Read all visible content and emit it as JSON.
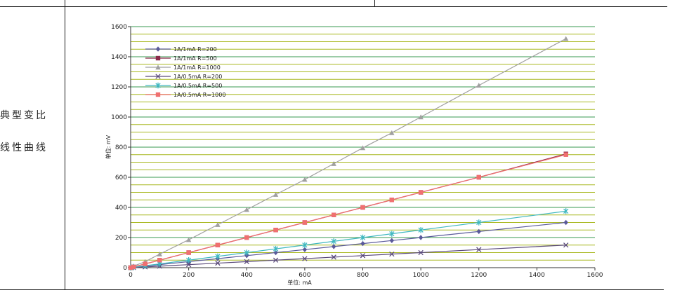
{
  "side": {
    "line1": "典型变比",
    "line2": "线性曲线"
  },
  "chart_data": {
    "type": "line",
    "xlabel": "单位:  mA",
    "ylabel": "单位:  mV",
    "xlim": [
      0,
      1600
    ],
    "ylim": [
      0,
      1600
    ],
    "xticks": [
      0,
      200,
      400,
      600,
      800,
      1000,
      1200,
      1400,
      1600
    ],
    "yticks": [
      0,
      200,
      400,
      600,
      800,
      1000,
      1200,
      1400,
      1600
    ],
    "grid": true,
    "legend_position": "top-left",
    "x": [
      0,
      10,
      50,
      100,
      200,
      300,
      400,
      500,
      600,
      700,
      800,
      900,
      1000,
      1200,
      1500
    ],
    "series": [
      {
        "name": "1A/1mA  R=200",
        "color": "#5a5a9a",
        "marker": "diamond",
        "values": [
          0,
          2,
          10,
          20,
          40,
          60,
          80,
          100,
          120,
          140,
          160,
          180,
          200,
          240,
          300
        ]
      },
      {
        "name": "1A/1mA  R=500",
        "color": "#8b2a4a",
        "marker": "square",
        "values": [
          0,
          5,
          25,
          50,
          100,
          150,
          200,
          250,
          300,
          350,
          400,
          450,
          500,
          600,
          755
        ]
      },
      {
        "name": "1A/1mA  R=1000",
        "color": "#a0a0a0",
        "marker": "triangle",
        "values": [
          0,
          10,
          40,
          90,
          185,
          285,
          385,
          485,
          585,
          690,
          795,
          895,
          1000,
          1210,
          1520
        ]
      },
      {
        "name": "1A/0.5mA  R=200",
        "color": "#5a4a7a",
        "marker": "x",
        "values": [
          0,
          1,
          5,
          10,
          20,
          30,
          40,
          50,
          60,
          70,
          80,
          90,
          100,
          120,
          150
        ]
      },
      {
        "name": "1A/0.5mA  R=500",
        "color": "#40b8c0",
        "marker": "star",
        "values": [
          0,
          3,
          13,
          25,
          50,
          75,
          100,
          125,
          150,
          175,
          200,
          225,
          250,
          300,
          375
        ]
      },
      {
        "name": "1A/0.5mA  R=1000",
        "color": "#f07070",
        "marker": "square",
        "values": [
          0,
          5,
          25,
          50,
          100,
          150,
          200,
          250,
          300,
          350,
          400,
          450,
          500,
          600,
          750
        ]
      }
    ],
    "colors": {
      "grid_minor": "#a8b820",
      "grid_major": "#3a9a50",
      "axis": "#333333"
    }
  }
}
